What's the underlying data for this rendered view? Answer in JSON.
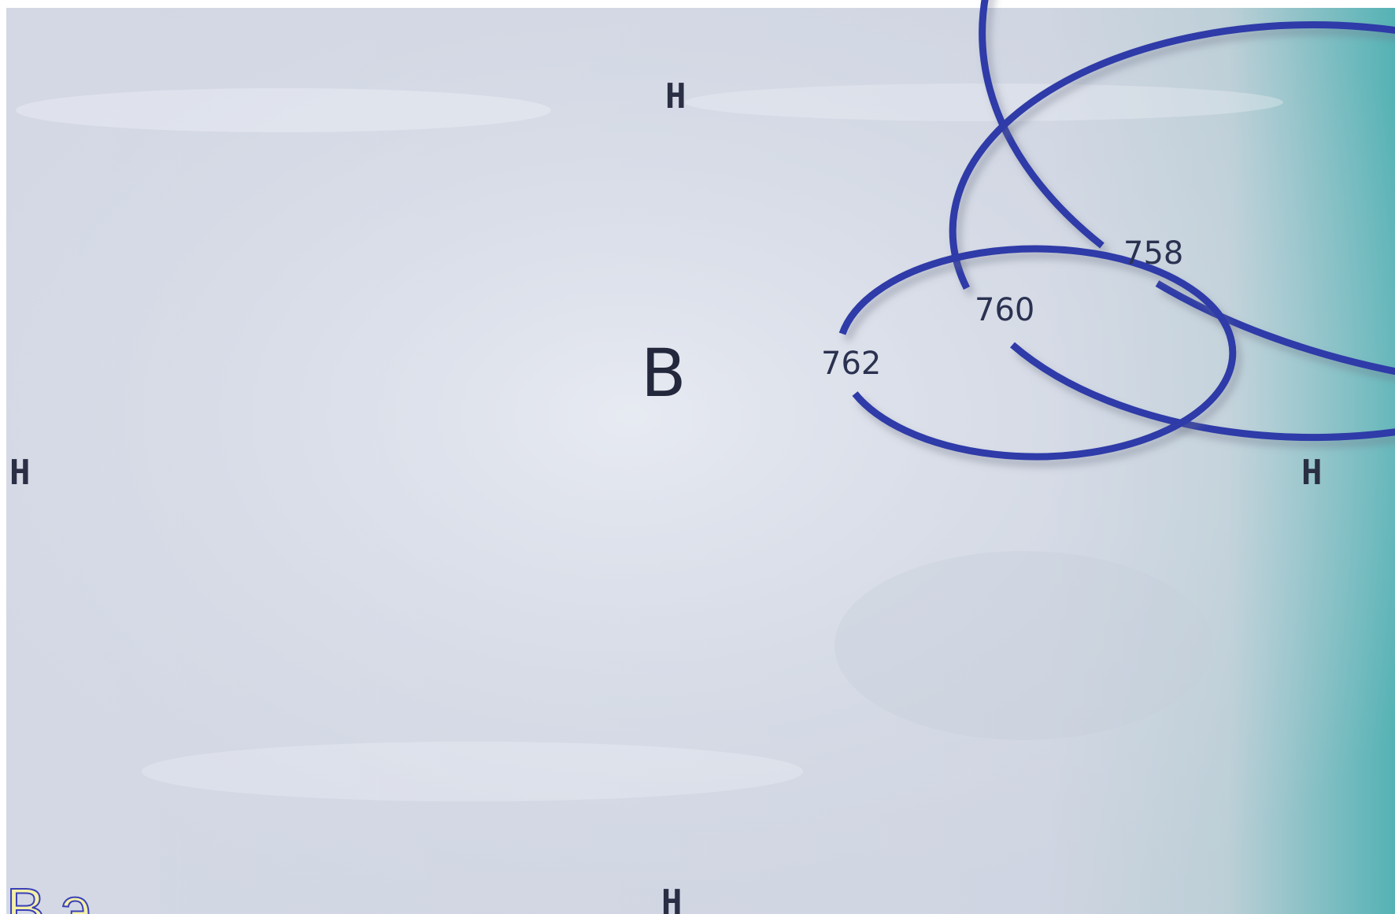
{
  "diagram": {
    "direction_labels": {
      "top": "Н",
      "left": "Н",
      "right": "Н",
      "bottom": "Н"
    },
    "center_label": "В",
    "isobars": [
      {
        "label": "758"
      },
      {
        "label": "760"
      },
      {
        "label": "762"
      }
    ],
    "bottom_caption_fragment": "В                              э"
  },
  "colors": {
    "isobar_line": "#2f3aa8",
    "background_light": "#d9dde8",
    "accent_teal": "#2fa7a6"
  }
}
